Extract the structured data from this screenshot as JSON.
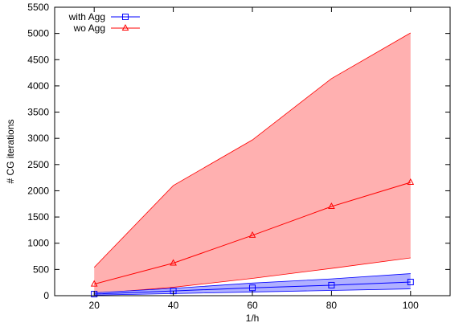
{
  "chart_data": {
    "type": "line",
    "title": "",
    "xlabel": "1/h",
    "ylabel": "# CG iterations",
    "xlim": [
      10,
      110
    ],
    "ylim": [
      0,
      5500
    ],
    "xticks": [
      20,
      40,
      60,
      80,
      100
    ],
    "yticks": [
      0,
      500,
      1000,
      1500,
      2000,
      2500,
      3000,
      3500,
      4000,
      4500,
      5000,
      5500
    ],
    "x": [
      20,
      40,
      60,
      80,
      100
    ],
    "grid": false,
    "legend_position": "top-left",
    "series": [
      {
        "name": "wo Agg",
        "color": "#ff0000",
        "band_color": "#ffb0b0",
        "marker": "triangle",
        "values": [
          220,
          620,
          1150,
          1700,
          2160
        ],
        "band_lower": [
          40,
          160,
          330,
          520,
          720
        ],
        "band_upper": [
          540,
          2100,
          2970,
          4140,
          5010
        ]
      },
      {
        "name": "with Agg",
        "color": "#0000ff",
        "band_color": "#b0b0ff",
        "marker": "square",
        "values": [
          30,
          90,
          150,
          200,
          260
        ],
        "band_lower": [
          10,
          40,
          70,
          100,
          130
        ],
        "band_upper": [
          55,
          140,
          240,
          320,
          420
        ]
      }
    ]
  }
}
